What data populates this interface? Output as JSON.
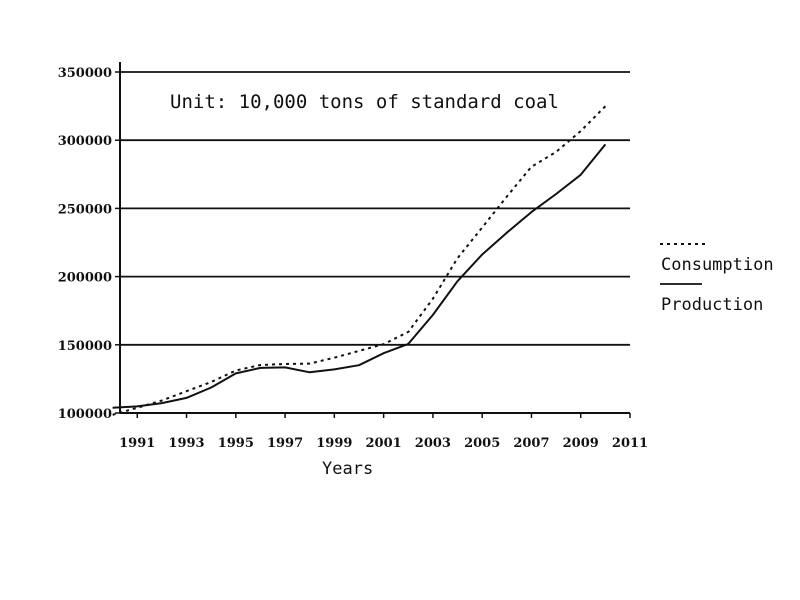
{
  "chart_data": {
    "type": "line",
    "title": "",
    "annotation": "Unit: 10,000 tons of standard coal",
    "xlabel": "Years",
    "ylabel": "",
    "xlim": [
      1990.3,
      2011
    ],
    "ylim": [
      100000,
      350000
    ],
    "grid": true,
    "legend_position": "right",
    "y_ticks": [
      100000,
      150000,
      200000,
      250000,
      300000,
      350000
    ],
    "x_ticks": [
      1991,
      1993,
      1995,
      1997,
      1999,
      2001,
      2003,
      2005,
      2007,
      2009,
      2011
    ],
    "x": [
      1990,
      1991,
      1992,
      1993,
      1994,
      1995,
      1996,
      1997,
      1998,
      1999,
      2000,
      2001,
      2002,
      2003,
      2004,
      2005,
      2006,
      2007,
      2008,
      2009,
      2010
    ],
    "series": [
      {
        "name": "Consumption",
        "style": "dotted",
        "values": [
          98703,
          103783,
          109170,
          115993,
          122737,
          131176,
          135192,
          135909,
          136184,
          140569,
          145531,
          150406,
          159431,
          183792,
          213456,
          235997,
          258676,
          280508,
          291448,
          306647,
          324939
        ]
      },
      {
        "name": "Production",
        "style": "solid",
        "values": [
          103922,
          104844,
          107256,
          111059,
          118729,
          129034,
          133032,
          133460,
          129834,
          131935,
          135048,
          143875,
          150656,
          171906,
          196648,
          216219,
          232167,
          247279,
          260552,
          274619,
          296916
        ]
      }
    ]
  }
}
